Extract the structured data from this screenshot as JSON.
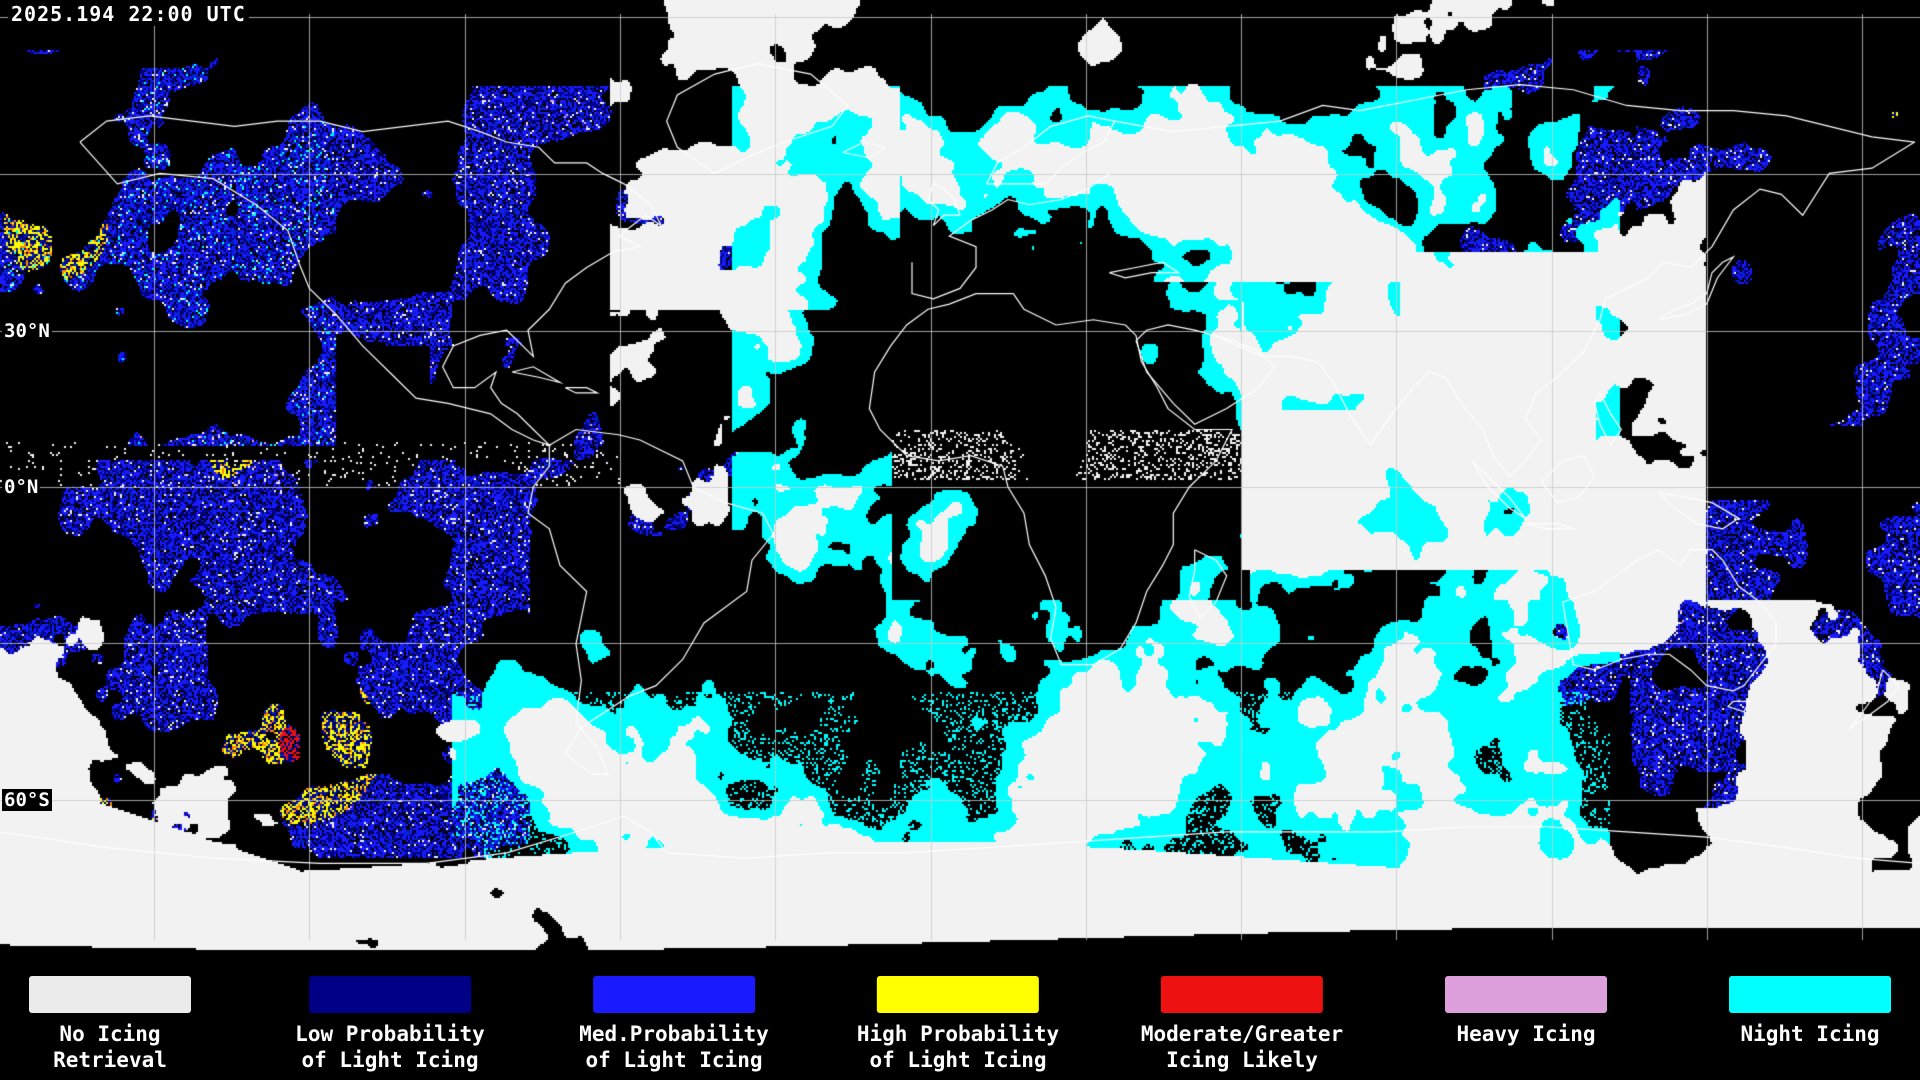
{
  "header": {
    "timestamp": "2025.194 22:00 UTC"
  },
  "map": {
    "lat_labels": [
      {
        "id": "30n",
        "text": "30°N"
      },
      {
        "id": "0n",
        "text": "0°N"
      },
      {
        "id": "60s",
        "text": "60°S"
      }
    ]
  },
  "legend": {
    "items": [
      {
        "id": "no-icing",
        "color": "#ebebeb",
        "line1": "No Icing",
        "line2": "Retrieval"
      },
      {
        "id": "low-probability",
        "color": "#000087",
        "line1": "Low Probability",
        "line2": "of Light Icing"
      },
      {
        "id": "med-probability",
        "color": "#1a1aff",
        "line1": "Med.Probability",
        "line2": "of Light Icing"
      },
      {
        "id": "high-probability",
        "color": "#ffff00",
        "line1": "High Probability",
        "line2": "of Light Icing"
      },
      {
        "id": "moderate-greater",
        "color": "#ee1111",
        "line1": "Moderate/Greater",
        "line2": "Icing Likely"
      },
      {
        "id": "heavy-icing",
        "color": "#dda0dd",
        "line1": "Heavy Icing",
        "line2": ""
      },
      {
        "id": "night-icing",
        "color": "#00ffff",
        "line1": "Night Icing",
        "line2": ""
      }
    ]
  },
  "palette": {
    "background": "#000000",
    "cloud_white": "#f2f2f2",
    "night_cyan": "#00ffff",
    "low_navy": "#000087",
    "med_blue": "#1a1aff",
    "deep_blue": "#0022bb",
    "high_yellow": "#ffff00",
    "orange_mix": "#ff8800",
    "moderate_red": "#ee1111",
    "heavy_plum": "#dda0dd",
    "coastline": "#ffffff",
    "gridline": "#c8c8c8"
  }
}
